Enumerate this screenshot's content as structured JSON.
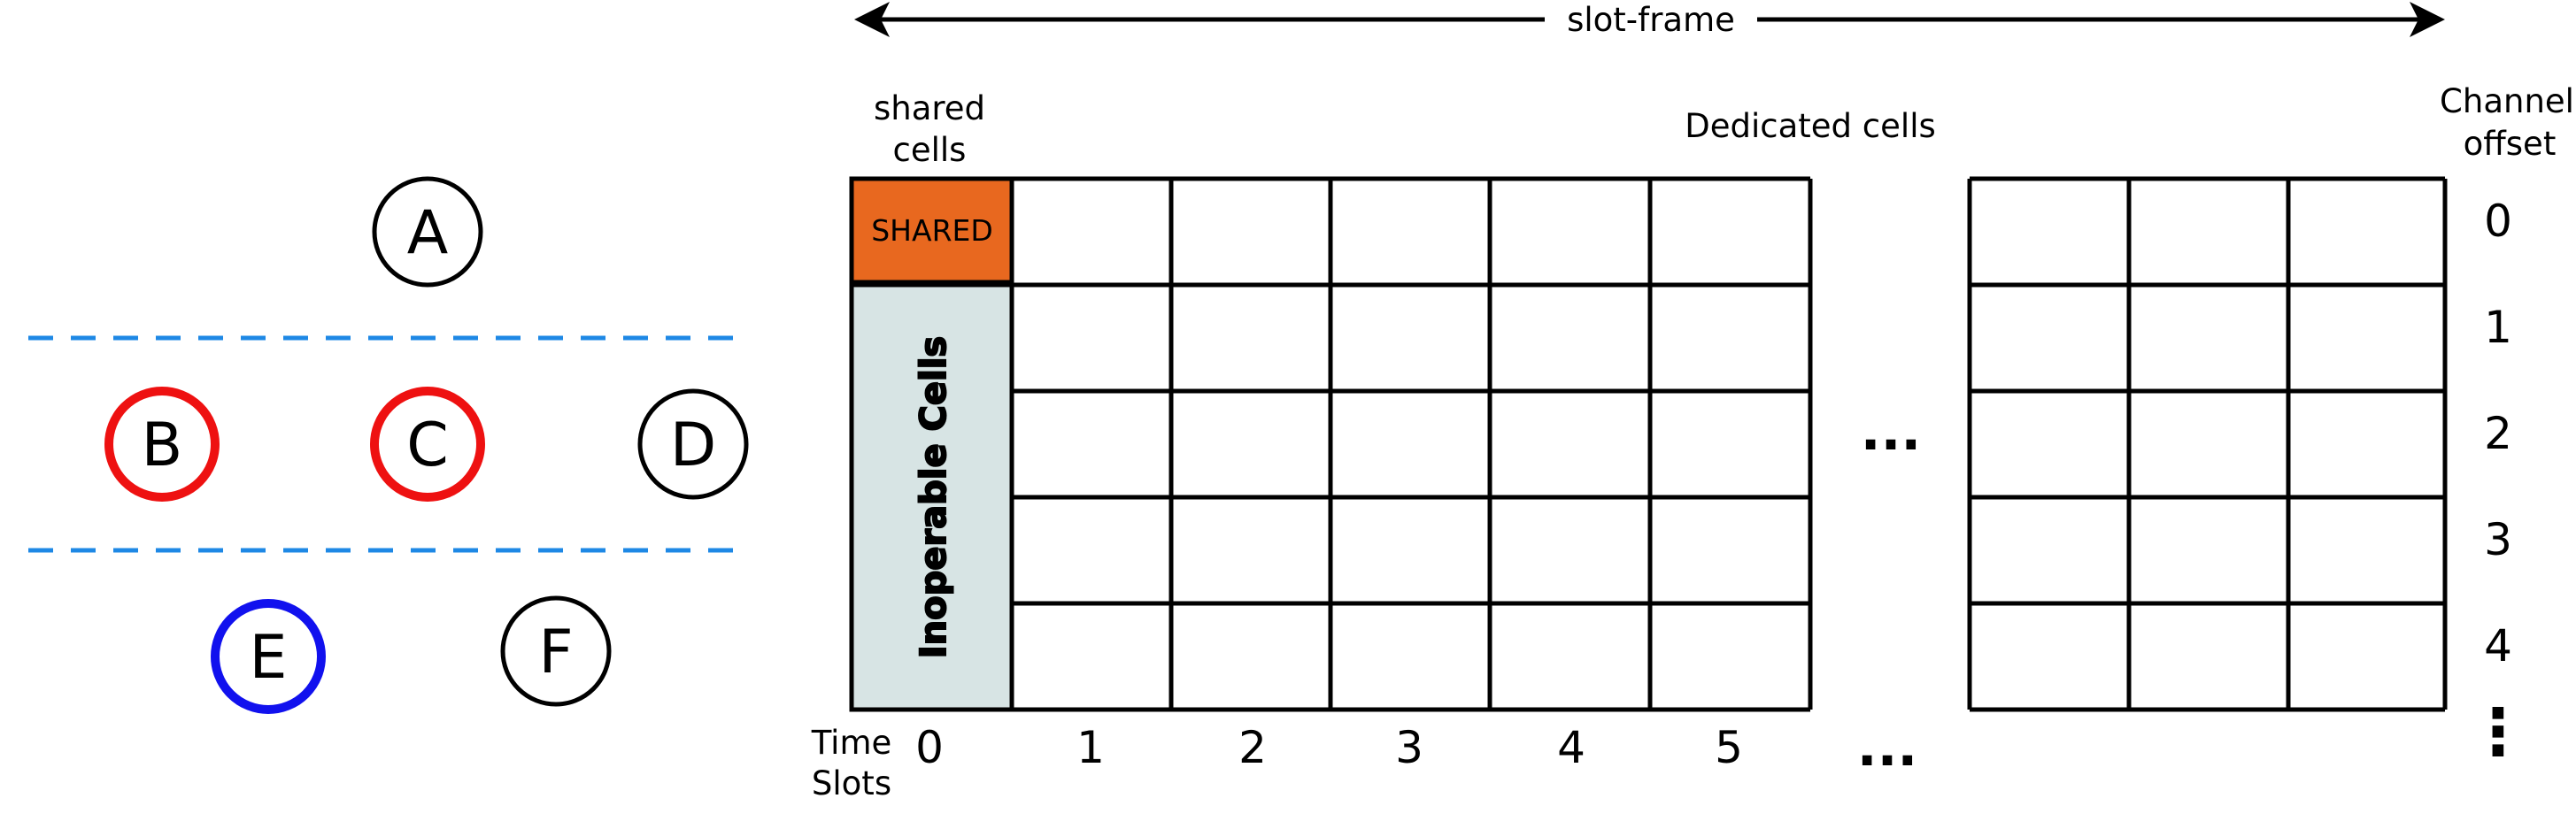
{
  "nodes": [
    {
      "id": "A",
      "label": "A",
      "color": "#000000"
    },
    {
      "id": "B",
      "label": "B",
      "color": "#ee1111"
    },
    {
      "id": "C",
      "label": "C",
      "color": "#ee1111"
    },
    {
      "id": "D",
      "label": "D",
      "color": "#000000"
    },
    {
      "id": "E",
      "label": "E",
      "color": "#1111ee"
    },
    {
      "id": "F",
      "label": "F",
      "color": "#000000"
    }
  ],
  "colors": {
    "separator": "#1e88e5",
    "shared_fill": "#e8681f",
    "inoperable_fill": "#d7e4e4",
    "grid": "#000000"
  },
  "labels": {
    "slot_frame": "slot-frame",
    "shared_cells_line1": "shared",
    "shared_cells_line2": "cells",
    "dedicated_cells": "Dedicated cells",
    "channel_offset_line1": "Channel",
    "channel_offset_line2": "offset",
    "shared": "SHARED",
    "inoperable": "Inoperable Cells",
    "time_slots_line1": "Time",
    "time_slots_line2": "Slots",
    "ellipsis_h": "...",
    "ellipsis_v": "⋮"
  },
  "time_slots": [
    "0",
    "1",
    "2",
    "3",
    "4",
    "5"
  ],
  "channel_offsets": [
    "0",
    "1",
    "2",
    "3",
    "4"
  ]
}
